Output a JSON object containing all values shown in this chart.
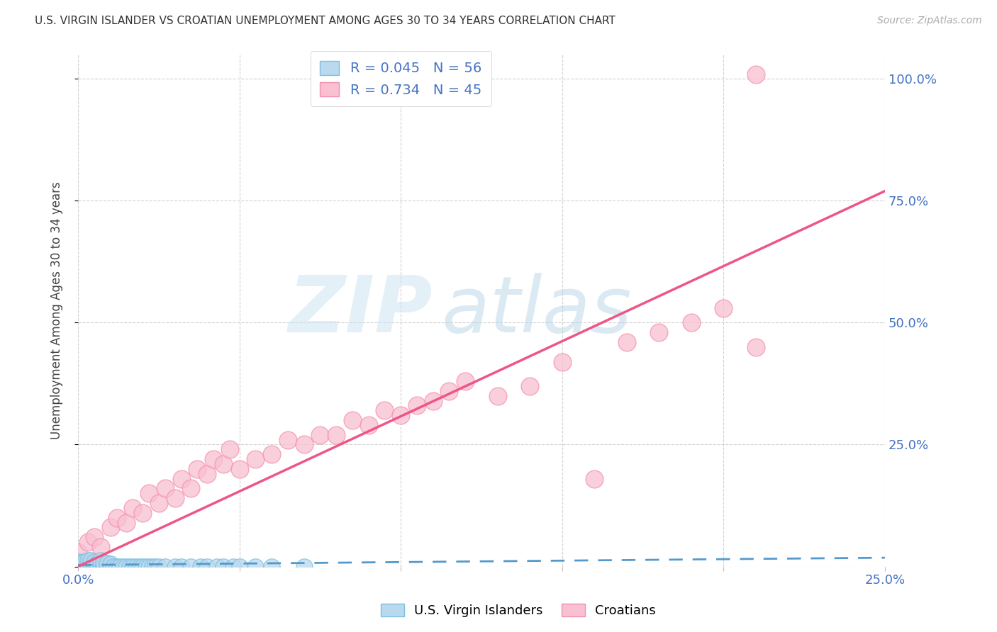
{
  "title": "U.S. VIRGIN ISLANDER VS CROATIAN UNEMPLOYMENT AMONG AGES 30 TO 34 YEARS CORRELATION CHART",
  "source": "Source: ZipAtlas.com",
  "ylabel": "Unemployment Among Ages 30 to 34 years",
  "xlim": [
    0.0,
    0.25
  ],
  "ylim": [
    0.0,
    1.05
  ],
  "blue_color": "#7fbfdf",
  "blue_fill": "#b8d9ee",
  "pink_color": "#f490b0",
  "pink_fill": "#f8c0d0",
  "blue_line_color": "#5599cc",
  "pink_line_color": "#ee5588",
  "blue_R": 0.045,
  "blue_N": 56,
  "pink_R": 0.734,
  "pink_N": 45,
  "blue_x": [
    0.0,
    0.0,
    0.0,
    0.001,
    0.001,
    0.002,
    0.002,
    0.002,
    0.003,
    0.003,
    0.003,
    0.004,
    0.004,
    0.004,
    0.005,
    0.005,
    0.005,
    0.006,
    0.006,
    0.007,
    0.007,
    0.007,
    0.008,
    0.008,
    0.009,
    0.009,
    0.01,
    0.01,
    0.011,
    0.012,
    0.013,
    0.014,
    0.015,
    0.016,
    0.017,
    0.018,
    0.019,
    0.02,
    0.021,
    0.022,
    0.023,
    0.024,
    0.025,
    0.027,
    0.03,
    0.032,
    0.035,
    0.038,
    0.04,
    0.043,
    0.045,
    0.048,
    0.05,
    0.055,
    0.06,
    0.07
  ],
  "blue_y": [
    0.0,
    0.005,
    0.01,
    0.0,
    0.008,
    0.0,
    0.005,
    0.01,
    0.0,
    0.005,
    0.012,
    0.0,
    0.006,
    0.013,
    0.0,
    0.004,
    0.01,
    0.0,
    0.007,
    0.0,
    0.005,
    0.012,
    0.0,
    0.008,
    0.0,
    0.006,
    0.0,
    0.005,
    0.0,
    0.0,
    0.0,
    0.0,
    0.0,
    0.0,
    0.0,
    0.0,
    0.0,
    0.0,
    0.0,
    0.0,
    0.0,
    0.0,
    0.0,
    0.0,
    0.0,
    0.0,
    0.0,
    0.0,
    0.0,
    0.0,
    0.0,
    0.0,
    0.0,
    0.0,
    0.0,
    0.0
  ],
  "pink_x": [
    0.0,
    0.003,
    0.005,
    0.007,
    0.01,
    0.012,
    0.015,
    0.017,
    0.02,
    0.022,
    0.025,
    0.027,
    0.03,
    0.032,
    0.035,
    0.037,
    0.04,
    0.042,
    0.045,
    0.047,
    0.05,
    0.055,
    0.06,
    0.065,
    0.07,
    0.075,
    0.08,
    0.085,
    0.09,
    0.095,
    0.1,
    0.105,
    0.11,
    0.115,
    0.12,
    0.13,
    0.14,
    0.15,
    0.16,
    0.17,
    0.18,
    0.19,
    0.2,
    0.21,
    0.21
  ],
  "pink_y": [
    0.03,
    0.05,
    0.06,
    0.04,
    0.08,
    0.1,
    0.09,
    0.12,
    0.11,
    0.15,
    0.13,
    0.16,
    0.14,
    0.18,
    0.16,
    0.2,
    0.19,
    0.22,
    0.21,
    0.24,
    0.2,
    0.22,
    0.23,
    0.26,
    0.25,
    0.27,
    0.27,
    0.3,
    0.29,
    0.32,
    0.31,
    0.33,
    0.34,
    0.36,
    0.38,
    0.35,
    0.37,
    0.42,
    0.18,
    0.46,
    0.48,
    0.5,
    0.53,
    0.45,
    1.01
  ],
  "blue_trend_x": [
    0.0,
    0.25
  ],
  "blue_trend_y": [
    0.003,
    0.018
  ],
  "pink_trend_x": [
    0.0,
    0.25
  ],
  "pink_trend_y": [
    0.0,
    0.77
  ]
}
